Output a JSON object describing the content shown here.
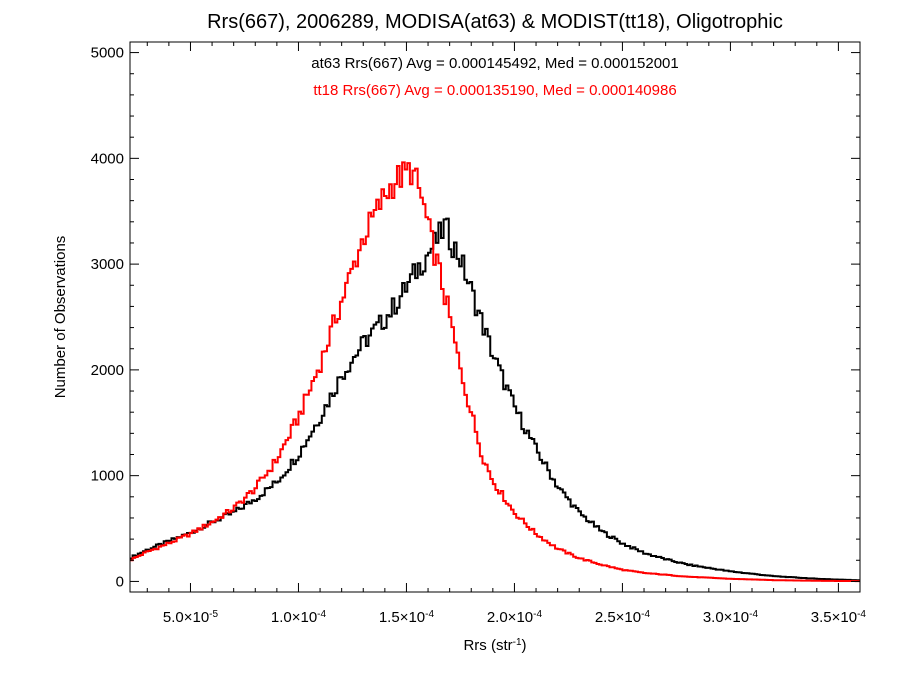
{
  "chart_data": {
    "type": "line",
    "title": "Rrs(667), 2006289, MODISA(at63) & MODIST(tt18), Oligotrophic",
    "xlabel": {
      "main": "Rrs (str",
      "sup": "-1",
      "end": ")"
    },
    "ylabel": "Number of Observations",
    "xlim": [
      2.2e-05,
      0.00036
    ],
    "ylim": [
      -100,
      5100
    ],
    "grid": false,
    "legend_placement": "top-center",
    "xticks": [
      {
        "value": 5e-05,
        "mant": "5.0×10",
        "exp": "-5"
      },
      {
        "value": 0.0001,
        "mant": "1.0×10",
        "exp": "-4"
      },
      {
        "value": 0.00015,
        "mant": "1.5×10",
        "exp": "-4"
      },
      {
        "value": 0.0002,
        "mant": "2.0×10",
        "exp": "-4"
      },
      {
        "value": 0.00025,
        "mant": "2.5×10",
        "exp": "-4"
      },
      {
        "value": 0.0003,
        "mant": "3.0×10",
        "exp": "-4"
      },
      {
        "value": 0.00035,
        "mant": "3.5×10",
        "exp": "-4"
      }
    ],
    "yticks": [
      0,
      1000,
      2000,
      3000,
      4000,
      5000
    ],
    "annotations": [
      {
        "text": "at63 Rrs(667) Avg = 0.000145492, Med = 0.000152001",
        "color": "#000000"
      },
      {
        "text": "tt18 Rrs(667) Avg = 0.000135190, Med = 0.000140986",
        "color": "#ff0000"
      }
    ],
    "series": [
      {
        "color": "#000000",
        "step": true,
        "x": [
          2.2e-05,
          3e-05,
          4e-05,
          5e-05,
          6e-05,
          7e-05,
          8e-05,
          9e-05,
          0.0001,
          0.00011,
          0.00012,
          0.00013,
          0.00014,
          0.000145,
          0.00015,
          0.000155,
          0.00016,
          0.000165,
          0.000168,
          0.00017,
          0.000175,
          0.00018,
          0.000185,
          0.00019,
          0.0002,
          0.00021,
          0.00022,
          0.00023,
          0.00024,
          0.00025,
          0.00026,
          0.00027,
          0.00028,
          0.0003,
          0.00032,
          0.00034,
          0.00036
        ],
        "y": [
          220,
          300,
          380,
          460,
          560,
          650,
          780,
          940,
          1200,
          1550,
          1950,
          2250,
          2480,
          2620,
          2780,
          2950,
          3100,
          3250,
          3360,
          3250,
          3050,
          2750,
          2450,
          2150,
          1650,
          1250,
          900,
          650,
          480,
          360,
          270,
          210,
          160,
          95,
          50,
          25,
          10
        ]
      },
      {
        "color": "#ff0000",
        "step": true,
        "x": [
          2.2e-05,
          3e-05,
          4e-05,
          5e-05,
          6e-05,
          7e-05,
          8e-05,
          9e-05,
          0.0001,
          0.00011,
          0.00012,
          0.00013,
          0.00014,
          0.000145,
          0.00015,
          0.000152,
          0.000155,
          0.000158,
          0.00016,
          0.000165,
          0.00017,
          0.000175,
          0.00018,
          0.000185,
          0.00019,
          0.0002,
          0.00021,
          0.00022,
          0.00023,
          0.00024,
          0.00025,
          0.00026,
          0.00028,
          0.0003,
          0.00032,
          0.00034,
          0.00036
        ],
        "y": [
          200,
          280,
          360,
          450,
          560,
          690,
          880,
          1150,
          1550,
          2050,
          2650,
          3250,
          3650,
          3800,
          3850,
          3900,
          3750,
          3550,
          3350,
          2950,
          2500,
          2000,
          1600,
          1200,
          950,
          650,
          450,
          310,
          220,
          160,
          110,
          80,
          45,
          25,
          12,
          6,
          3
        ]
      }
    ]
  }
}
